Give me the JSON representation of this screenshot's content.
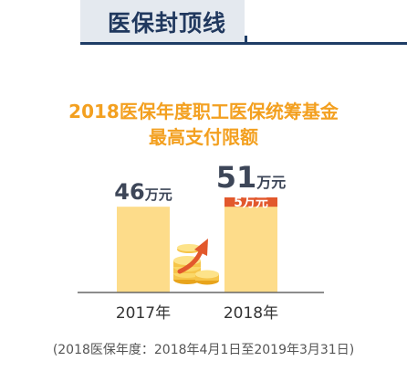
{
  "header": {
    "title": "医保封顶线"
  },
  "colors": {
    "bar": "#fddc8a",
    "increase": "#e2582c",
    "title": "#f3a020",
    "value": "#3d4658",
    "header": "#20385e"
  },
  "chart_data": {
    "type": "bar",
    "title_line1": "2018医保年度职工医保统筹基金",
    "title_line2": "最高支付限额",
    "categories": [
      "2017年",
      "2018年"
    ],
    "values": [
      46,
      51
    ],
    "unit": "万元",
    "increase": {
      "value": 5,
      "label": "5万元"
    },
    "icon": "coins-up-arrow-icon",
    "grid": false
  },
  "footnote": "(2018医保年度：2018年4月1日至2019年3月31日)"
}
